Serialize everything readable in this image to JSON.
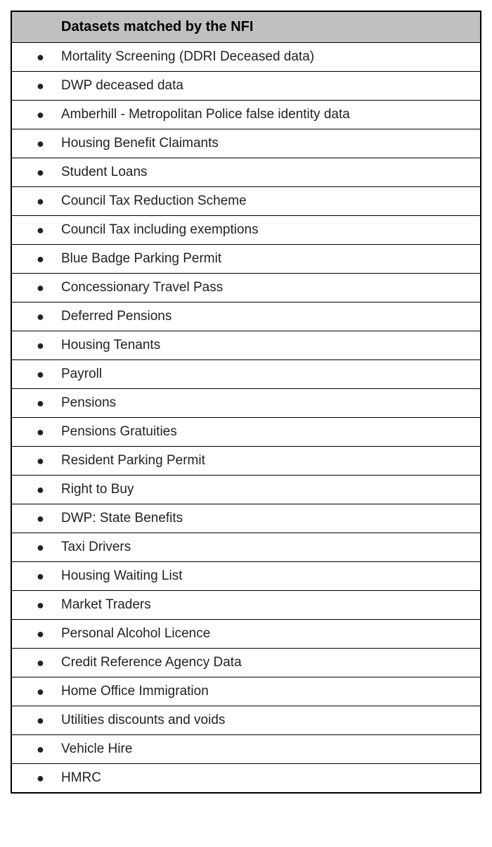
{
  "table": {
    "type": "table",
    "header": "Datasets matched by the NFI",
    "header_background": "#c0c0c0",
    "border_color": "#000000",
    "background_color": "#ffffff",
    "text_color": "#222222",
    "header_fontsize": 20,
    "row_fontsize": 19,
    "bullet_char": "●",
    "rows": [
      "Mortality Screening (DDRI Deceased data)",
      "DWP deceased data",
      "Amberhill - Metropolitan Police false identity data",
      "Housing Benefit Claimants",
      "Student Loans",
      "Council Tax Reduction Scheme",
      "Council Tax including exemptions",
      "Blue Badge Parking Permit",
      "Concessionary Travel Pass",
      "Deferred Pensions",
      "Housing Tenants",
      "Payroll",
      "Pensions",
      "Pensions Gratuities",
      "Resident Parking Permit",
      "Right to Buy",
      "DWP: State Benefits",
      "Taxi Drivers",
      "Housing Waiting List",
      "Market Traders",
      "Personal Alcohol Licence",
      "Credit Reference Agency Data",
      "Home Office Immigration",
      "Utilities discounts and voids",
      "Vehicle Hire",
      "HMRC"
    ]
  }
}
